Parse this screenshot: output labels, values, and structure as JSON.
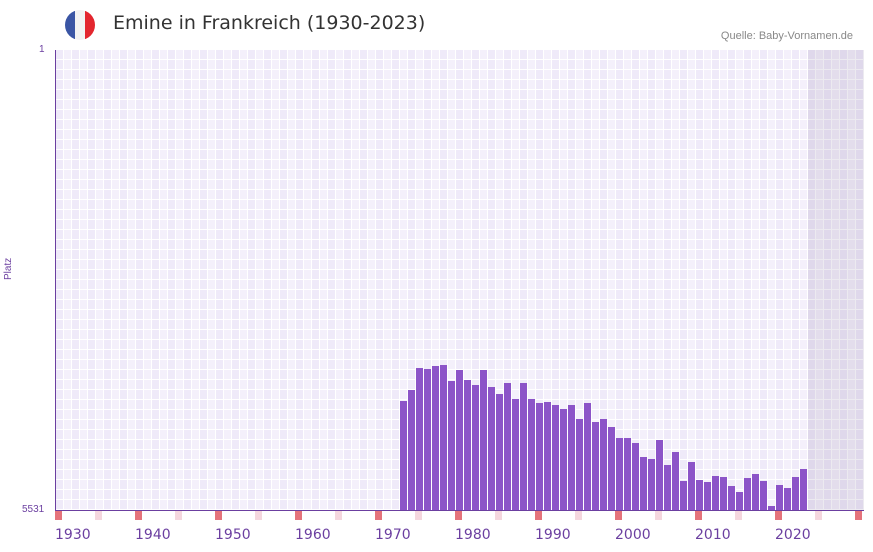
{
  "header": {
    "title": "Emine in Frankreich (1930-2023)",
    "source": "Quelle: Baby-Vornamen.de",
    "flag_colors": [
      "#3a55a4",
      "#f2f2f2",
      "#e3262e"
    ]
  },
  "colors": {
    "bar": "#8c54c8",
    "marker_major": "#e5737b",
    "marker_minor": "#f5d7de",
    "axis": "#6b3fa0"
  },
  "chart_data": {
    "type": "bar",
    "title": "Emine in Frankreich (1930-2023)",
    "xlabel": "",
    "ylabel": "Platz",
    "ylim": [
      5531,
      1
    ],
    "y_ticks": [
      "1",
      "5531"
    ],
    "x_range": [
      1930,
      2030
    ],
    "x_ticks": [
      "1930",
      "1940",
      "1950",
      "1960",
      "1970",
      "1980",
      "1990",
      "2000",
      "2010",
      "2020"
    ],
    "future_from": 2024,
    "categories": [
      1973,
      1974,
      1975,
      1976,
      1977,
      1978,
      1979,
      1980,
      1981,
      1982,
      1983,
      1984,
      1985,
      1986,
      1987,
      1988,
      1989,
      1990,
      1991,
      1992,
      1993,
      1994,
      1995,
      1996,
      1997,
      1998,
      1999,
      2000,
      2001,
      2002,
      2003,
      2004,
      2005,
      2006,
      2007,
      2008,
      2009,
      2010,
      2011,
      2012,
      2013,
      2014,
      2015,
      2016,
      2017,
      2018,
      2019,
      2020,
      2021,
      2022,
      2023
    ],
    "values": [
      4220,
      4088,
      3824,
      3836,
      3800,
      3788,
      3980,
      3848,
      3968,
      4028,
      3848,
      4052,
      4137,
      4004,
      4197,
      4004,
      4197,
      4245,
      4233,
      4269,
      4317,
      4269,
      4437,
      4245,
      4473,
      4437,
      4533,
      4665,
      4665,
      4725,
      4894,
      4918,
      4689,
      4990,
      4834,
      5183,
      4954,
      5171,
      5195,
      5123,
      5135,
      5243,
      5315,
      5147,
      5099,
      5183,
      5483,
      5231,
      5267,
      5135,
      5038
    ]
  }
}
